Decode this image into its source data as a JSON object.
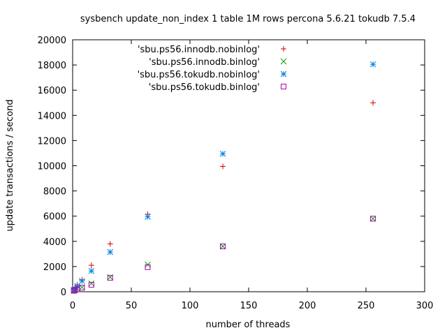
{
  "chart_data": {
    "type": "scatter",
    "title": "sysbench update_non_index 1 table 1M rows percona 5.6.21 tokudb 7.5.4",
    "xlabel": "number of threads",
    "ylabel": "update transactions / second",
    "xlim": [
      0,
      300
    ],
    "ylim": [
      0,
      20000
    ],
    "xticks": [
      0,
      50,
      100,
      150,
      200,
      250,
      300
    ],
    "yticks": [
      0,
      2000,
      4000,
      6000,
      8000,
      10000,
      12000,
      14000,
      16000,
      18000,
      20000
    ],
    "legend_position": "top-right",
    "grid": false,
    "series": [
      {
        "name": "'sbu.ps56.innodb.nobinlog'",
        "marker": "plus",
        "color": "#cc0000",
        "x": [
          1,
          2,
          4,
          8,
          16,
          32,
          64,
          128,
          256
        ],
        "y": [
          150,
          300,
          550,
          950,
          2100,
          3800,
          6150,
          9950,
          15000
        ]
      },
      {
        "name": "'sbu.ps56.innodb.binlog'",
        "marker": "cross",
        "color": "#00a000",
        "x": [
          1,
          2,
          4,
          8,
          16,
          32,
          64,
          128,
          256
        ],
        "y": [
          80,
          150,
          250,
          350,
          650,
          1150,
          2150,
          3600,
          5800
        ]
      },
      {
        "name": "'sbu.ps56.tokudb.nobinlog'",
        "marker": "star",
        "color": "#0080e0",
        "x": [
          1,
          2,
          4,
          8,
          16,
          32,
          64,
          128,
          256
        ],
        "y": [
          150,
          250,
          450,
          850,
          1650,
          3150,
          5950,
          10950,
          18050
        ]
      },
      {
        "name": "'sbu.ps56.tokudb.binlog'",
        "marker": "square",
        "color": "#b000b0",
        "x": [
          1,
          2,
          4,
          8,
          16,
          32,
          64,
          128,
          256
        ],
        "y": [
          80,
          130,
          200,
          320,
          550,
          1100,
          1950,
          3600,
          5800
        ]
      }
    ]
  }
}
